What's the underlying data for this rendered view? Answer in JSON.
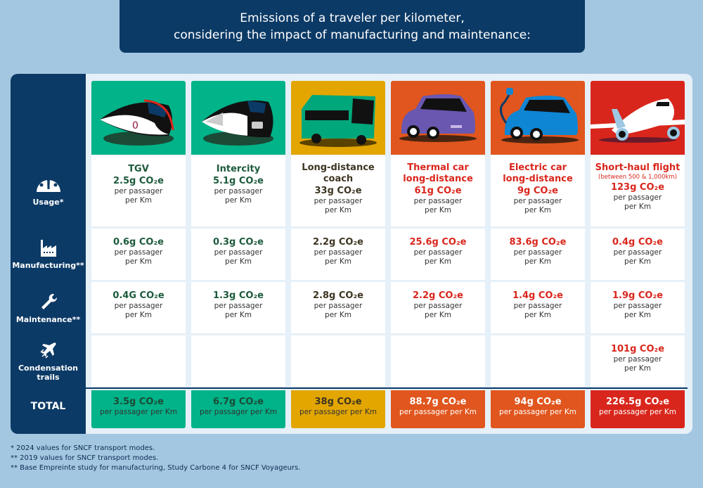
{
  "title": [
    "Emissions of a traveler per kilometer,",
    "considering the impact of manufacturing and maintenance:"
  ],
  "rows": {
    "usage": "Usage*",
    "manufacturing": "Manufacturing**",
    "maintenance": "Maintenance**",
    "contrails": "Condensation trails",
    "total": "TOTAL"
  },
  "unit_per": "per passager\nper Km",
  "unit_per_total": "per passager per Km",
  "columns": [
    {
      "name": "TGV",
      "value": "2.5g CO₂e",
      "manufacturing": "0.6g CO₂e",
      "maintenance": "0.4G CO₂e",
      "contrails": "",
      "total": "3.5g CO₂e",
      "color": "#00b388",
      "text_color": "#1d5a3c",
      "icon": "tgv-train-icon"
    },
    {
      "name": "Intercity",
      "value": "5.1g CO₂e",
      "manufacturing": "0.3g CO₂e",
      "maintenance": "1.3g CO₂e",
      "contrails": "",
      "total": "6.7g CO₂e",
      "color": "#00b388",
      "text_color": "#1d5a3c",
      "icon": "intercity-train-icon"
    },
    {
      "name": "Long-distance\ncoach",
      "value": "33g CO₂e",
      "manufacturing": "2.2g CO₂e",
      "maintenance": "2.8g CO₂e",
      "contrails": "",
      "total": "38g CO₂e",
      "color": "#e3a600",
      "text_color": "#3d3522",
      "icon": "coach-bus-icon"
    },
    {
      "name": "Thermal car\nlong-distance",
      "value": "61g CO₂e",
      "manufacturing": "25.6g CO₂e",
      "maintenance": "2.2g CO₂e",
      "contrails": "",
      "total": "88.7g CO₂e",
      "color": "#e0561e",
      "text_color": "#d9261c",
      "icon": "thermal-car-icon"
    },
    {
      "name": "Electric car\nlong-distance",
      "value": "9g CO₂e",
      "manufacturing": "83.6g CO₂e",
      "maintenance": "1.4g CO₂e",
      "contrails": "",
      "total": "94g CO₂e",
      "color": "#e0561e",
      "text_color": "#d9261c",
      "icon": "electric-car-icon"
    },
    {
      "name": "Short-haul flight",
      "sub": "(between 500 & 1,000km)",
      "value": "123g CO₂e",
      "manufacturing": "0.4g CO₂e",
      "maintenance": "1.9g CO₂e",
      "contrails": "101g CO₂e",
      "total": "226.5g CO₂e",
      "color": "#d9261c",
      "text_color": "#d9261c",
      "icon": "airplane-icon"
    }
  ],
  "notes": [
    "* 2024 values for SNCF transport modes.",
    "** 2019 values for SNCF transport modes.",
    "** Base Empreinte study for manufacturing, Study Carbone 4 for SNCF Voyageurs."
  ]
}
